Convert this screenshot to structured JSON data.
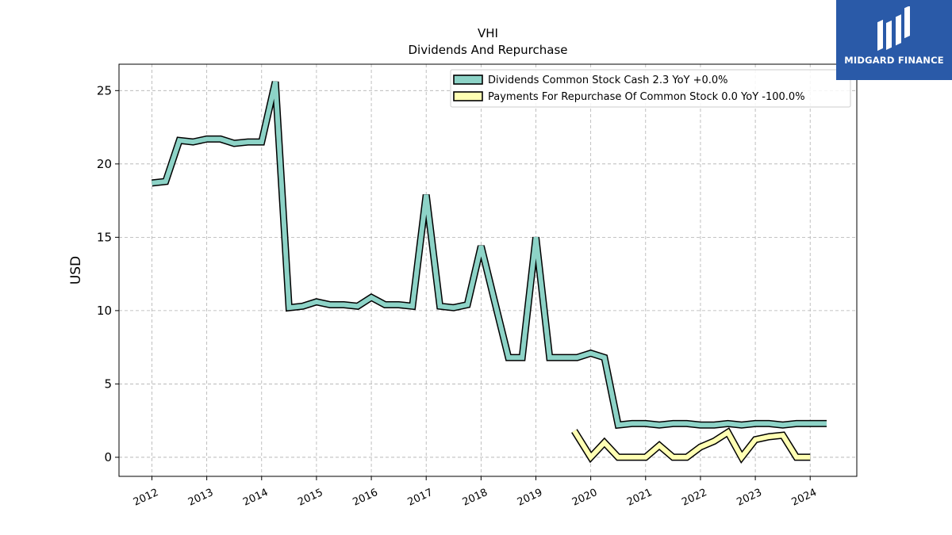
{
  "brand": {
    "name": "MIDGARD FINANCE",
    "bg_color": "#2a5aa8"
  },
  "chart_data": {
    "type": "line",
    "title": "VHI",
    "subtitle": "Dividends And Repurchase",
    "xlabel": "",
    "ylabel": "USD",
    "xlim": [
      2011.4,
      2024.85
    ],
    "ylim": [
      -1.3,
      26.8
    ],
    "x_ticks": [
      2012,
      2013,
      2014,
      2015,
      2016,
      2017,
      2018,
      2019,
      2020,
      2021,
      2022,
      2023,
      2024
    ],
    "y_ticks": [
      0,
      5,
      10,
      15,
      20,
      25
    ],
    "grid": true,
    "legend_position": "top-right",
    "series": [
      {
        "name": "Dividends Common Stock Cash  2.3 YoY +0.0%",
        "color": "#8dd3c7",
        "points": [
          [
            2012.0,
            18.7
          ],
          [
            2012.25,
            18.8
          ],
          [
            2012.5,
            21.6
          ],
          [
            2012.75,
            21.5
          ],
          [
            2013.0,
            21.7
          ],
          [
            2013.25,
            21.7
          ],
          [
            2013.5,
            21.4
          ],
          [
            2013.75,
            21.5
          ],
          [
            2014.0,
            21.5
          ],
          [
            2014.25,
            25.6
          ],
          [
            2014.5,
            10.2
          ],
          [
            2014.75,
            10.3
          ],
          [
            2015.0,
            10.6
          ],
          [
            2015.25,
            10.4
          ],
          [
            2015.5,
            10.4
          ],
          [
            2015.75,
            10.3
          ],
          [
            2016.0,
            10.9
          ],
          [
            2016.25,
            10.4
          ],
          [
            2016.5,
            10.4
          ],
          [
            2016.75,
            10.3
          ],
          [
            2017.0,
            17.9
          ],
          [
            2017.25,
            10.3
          ],
          [
            2017.5,
            10.2
          ],
          [
            2017.75,
            10.4
          ],
          [
            2018.0,
            14.4
          ],
          [
            2018.25,
            10.6
          ],
          [
            2018.5,
            6.8
          ],
          [
            2018.75,
            6.8
          ],
          [
            2019.0,
            15.0
          ],
          [
            2019.25,
            6.8
          ],
          [
            2019.5,
            6.8
          ],
          [
            2019.75,
            6.8
          ],
          [
            2020.0,
            7.1
          ],
          [
            2020.25,
            6.8
          ],
          [
            2020.5,
            2.2
          ],
          [
            2020.75,
            2.3
          ],
          [
            2021.0,
            2.3
          ],
          [
            2021.25,
            2.2
          ],
          [
            2021.5,
            2.3
          ],
          [
            2021.75,
            2.3
          ],
          [
            2022.0,
            2.2
          ],
          [
            2022.25,
            2.2
          ],
          [
            2022.5,
            2.3
          ],
          [
            2022.75,
            2.2
          ],
          [
            2023.0,
            2.3
          ],
          [
            2023.25,
            2.3
          ],
          [
            2023.5,
            2.2
          ],
          [
            2023.75,
            2.3
          ],
          [
            2024.0,
            2.3
          ],
          [
            2024.3,
            2.3
          ]
        ]
      },
      {
        "name": "Payments For Repurchase Of Common Stock  0.0 YoY -100.0%",
        "color": "#ffffb3",
        "points": [
          [
            2019.7,
            1.8
          ],
          [
            2020.0,
            0.0
          ],
          [
            2020.25,
            1.0
          ],
          [
            2020.5,
            0.0
          ],
          [
            2020.75,
            0.0
          ],
          [
            2021.0,
            0.0
          ],
          [
            2021.25,
            0.8
          ],
          [
            2021.5,
            0.0
          ],
          [
            2021.75,
            0.0
          ],
          [
            2022.0,
            0.7
          ],
          [
            2022.25,
            1.1
          ],
          [
            2022.5,
            1.7
          ],
          [
            2022.75,
            0.0
          ],
          [
            2023.0,
            1.2
          ],
          [
            2023.25,
            1.4
          ],
          [
            2023.5,
            1.5
          ],
          [
            2023.75,
            0.0
          ],
          [
            2024.0,
            0.0
          ]
        ]
      }
    ]
  }
}
